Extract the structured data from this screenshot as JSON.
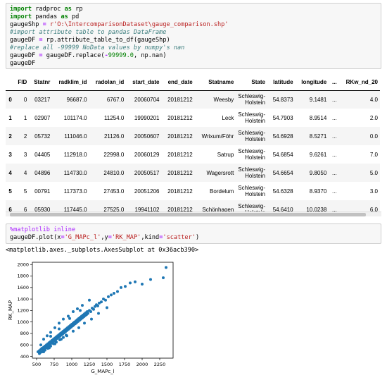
{
  "cell1": {
    "lines": [
      [
        {
          "t": "import",
          "c": "kw"
        },
        {
          "t": " radproc ",
          "c": "nm"
        },
        {
          "t": "as",
          "c": "kw"
        },
        {
          "t": " rp",
          "c": "nm"
        }
      ],
      [
        {
          "t": "import",
          "c": "kw"
        },
        {
          "t": " pandas ",
          "c": "nm"
        },
        {
          "t": "as",
          "c": "kw"
        },
        {
          "t": " pd",
          "c": "nm"
        }
      ],
      [
        {
          "t": "gaugeShp ",
          "c": "nm"
        },
        {
          "t": "=",
          "c": "op"
        },
        {
          "t": " ",
          "c": "nm"
        },
        {
          "t": "r'O:\\IntercomparisonDataset\\gauge_comparison.shp'",
          "c": "str"
        }
      ],
      [
        {
          "t": "#import attribute table to pandas DataFrame",
          "c": "cmt"
        }
      ],
      [
        {
          "t": "gaugeDF ",
          "c": "nm"
        },
        {
          "t": "=",
          "c": "op"
        },
        {
          "t": " rp.attribute_table_to_df(gaugeShp)",
          "c": "nm"
        }
      ],
      [
        {
          "t": "#replace all -99999 NoData values by numpy's nan",
          "c": "cmt"
        }
      ],
      [
        {
          "t": "gaugeDF ",
          "c": "nm"
        },
        {
          "t": "=",
          "c": "op"
        },
        {
          "t": " gaugeDF.replace(",
          "c": "nm"
        },
        {
          "t": "-",
          "c": "op"
        },
        {
          "t": "99999.0",
          "c": "num"
        },
        {
          "t": ", np.nan)",
          "c": "nm"
        }
      ],
      [
        {
          "t": "gaugeDF",
          "c": "nm"
        }
      ]
    ]
  },
  "table": {
    "columns": [
      "",
      "FID",
      "Statnr",
      "radklim_id",
      "radolan_id",
      "start_date",
      "end_date",
      "Statname",
      "State",
      "latitude",
      "longitude",
      "...",
      "RKw_nd_20"
    ],
    "rows": [
      {
        "index": "0",
        "cells": [
          "0",
          "03217",
          "96687.0",
          "6767.0",
          "20060704",
          "20181212",
          "Weesby",
          "Schleswig-Holstein",
          "54.8373",
          "9.1481",
          "...",
          "4.0"
        ]
      },
      {
        "index": "1",
        "cells": [
          "1",
          "02907",
          "101174.0",
          "11254.0",
          "19990201",
          "20181212",
          "Leck",
          "Schleswig-Holstein",
          "54.7903",
          "8.9514",
          "...",
          "2.0"
        ]
      },
      {
        "index": "2",
        "cells": [
          "2",
          "05732",
          "111046.0",
          "21126.0",
          "20050607",
          "20181212",
          "Wrixum/Föhr",
          "Schleswig-Holstein",
          "54.6928",
          "8.5271",
          "...",
          "0.0"
        ]
      },
      {
        "index": "3",
        "cells": [
          "3",
          "04405",
          "112918.0",
          "22998.0",
          "20060129",
          "20181212",
          "Satrup",
          "Schleswig-Holstein",
          "54.6854",
          "9.6261",
          "...",
          "7.0"
        ]
      },
      {
        "index": "4",
        "cells": [
          "4",
          "04896",
          "114730.0",
          "24810.0",
          "20050517",
          "20181212",
          "Wagersrott",
          "Schleswig-Holstein",
          "54.6654",
          "9.8050",
          "...",
          "5.0"
        ]
      },
      {
        "index": "5",
        "cells": [
          "5",
          "00791",
          "117373.0",
          "27453.0",
          "20051206",
          "20181212",
          "Bordelum",
          "Schleswig-Holstein",
          "54.6328",
          "8.9370",
          "...",
          "3.0"
        ]
      },
      {
        "index": "6",
        "cells": [
          "6",
          "05930",
          "117445.0",
          "27525.0",
          "19941102",
          "20181212",
          "Schönhagen",
          "Schleswig-Holstein",
          "54.6410",
          "10.0238",
          "...",
          "6.0"
        ]
      }
    ]
  },
  "cell2": {
    "lines": [
      [
        {
          "t": "%matplotlib inline",
          "c": "magic"
        }
      ],
      [
        {
          "t": "gaugeDF.plot(x",
          "c": "nm"
        },
        {
          "t": "=",
          "c": "op"
        },
        {
          "t": "'G_MAPc_l'",
          "c": "str"
        },
        {
          "t": ",y",
          "c": "nm"
        },
        {
          "t": "=",
          "c": "op"
        },
        {
          "t": "'RK_MAP'",
          "c": "str"
        },
        {
          "t": ",kind",
          "c": "nm"
        },
        {
          "t": "=",
          "c": "op"
        },
        {
          "t": "'scatter'",
          "c": "str"
        },
        {
          "t": ")",
          "c": "nm"
        }
      ]
    ]
  },
  "output": {
    "repr": "<matplotlib.axes._subplots.AxesSubplot at 0x36acb390>"
  },
  "chart_data": {
    "type": "scatter",
    "xlabel": "G_MAPc_l",
    "ylabel": "RK_MAP",
    "xlim": [
      440,
      2440
    ],
    "ylim": [
      370,
      2040
    ],
    "xticks": [
      500,
      750,
      1000,
      1250,
      1500,
      1750,
      2000,
      2250
    ],
    "yticks": [
      400,
      600,
      800,
      1000,
      1200,
      1400,
      1600,
      1800,
      2000
    ],
    "color": "#1f77b4",
    "points": [
      [
        520,
        480
      ],
      [
        540,
        500
      ],
      [
        555,
        470
      ],
      [
        560,
        520
      ],
      [
        575,
        540
      ],
      [
        590,
        510
      ],
      [
        600,
        560
      ],
      [
        610,
        530
      ],
      [
        620,
        580
      ],
      [
        630,
        550
      ],
      [
        640,
        600
      ],
      [
        650,
        570
      ],
      [
        660,
        620
      ],
      [
        670,
        590
      ],
      [
        680,
        640
      ],
      [
        690,
        610
      ],
      [
        700,
        660
      ],
      [
        710,
        630
      ],
      [
        720,
        680
      ],
      [
        730,
        650
      ],
      [
        740,
        700
      ],
      [
        750,
        670
      ],
      [
        760,
        720
      ],
      [
        770,
        690
      ],
      [
        780,
        740
      ],
      [
        790,
        710
      ],
      [
        800,
        760
      ],
      [
        810,
        730
      ],
      [
        820,
        780
      ],
      [
        830,
        750
      ],
      [
        840,
        800
      ],
      [
        850,
        770
      ],
      [
        860,
        820
      ],
      [
        870,
        790
      ],
      [
        880,
        840
      ],
      [
        890,
        810
      ],
      [
        900,
        860
      ],
      [
        910,
        830
      ],
      [
        920,
        880
      ],
      [
        930,
        850
      ],
      [
        940,
        900
      ],
      [
        950,
        870
      ],
      [
        960,
        920
      ],
      [
        970,
        890
      ],
      [
        980,
        940
      ],
      [
        990,
        910
      ],
      [
        1000,
        960
      ],
      [
        1010,
        930
      ],
      [
        1020,
        980
      ],
      [
        1030,
        950
      ],
      [
        1040,
        1000
      ],
      [
        1050,
        970
      ],
      [
        1060,
        1020
      ],
      [
        1070,
        990
      ],
      [
        1080,
        1040
      ],
      [
        1090,
        1010
      ],
      [
        1100,
        1060
      ],
      [
        1110,
        1030
      ],
      [
        1120,
        1080
      ],
      [
        1130,
        1050
      ],
      [
        1140,
        1100
      ],
      [
        1150,
        1070
      ],
      [
        1160,
        1120
      ],
      [
        1170,
        1090
      ],
      [
        1180,
        1140
      ],
      [
        1190,
        1110
      ],
      [
        1200,
        1160
      ],
      [
        1210,
        1130
      ],
      [
        1220,
        1180
      ],
      [
        1230,
        1150
      ],
      [
        1250,
        1200
      ],
      [
        1270,
        1180
      ],
      [
        1290,
        1240
      ],
      [
        1310,
        1220
      ],
      [
        1330,
        1270
      ],
      [
        1350,
        1300
      ],
      [
        1370,
        1280
      ],
      [
        1390,
        1330
      ],
      [
        1420,
        1350
      ],
      [
        1450,
        1400
      ],
      [
        1480,
        1380
      ],
      [
        1520,
        1440
      ],
      [
        1560,
        1470
      ],
      [
        1600,
        1500
      ],
      [
        1650,
        1530
      ],
      [
        1700,
        1600
      ],
      [
        1760,
        1620
      ],
      [
        1830,
        1680
      ],
      [
        1900,
        1700
      ],
      [
        2000,
        1660
      ],
      [
        2120,
        1740
      ],
      [
        2300,
        1770
      ],
      [
        2340,
        1950
      ],
      [
        600,
        700
      ],
      [
        650,
        760
      ],
      [
        700,
        820
      ],
      [
        760,
        900
      ],
      [
        820,
        980
      ],
      [
        880,
        1050
      ],
      [
        950,
        1100
      ],
      [
        1020,
        1180
      ],
      [
        1080,
        1230
      ],
      [
        1150,
        1290
      ],
      [
        1250,
        1380
      ],
      [
        600,
        480
      ],
      [
        680,
        550
      ],
      [
        760,
        620
      ],
      [
        850,
        700
      ],
      [
        930,
        760
      ],
      [
        1020,
        840
      ],
      [
        1100,
        900
      ],
      [
        1180,
        980
      ],
      [
        1280,
        1050
      ],
      [
        1380,
        1150
      ],
      [
        1500,
        1250
      ],
      [
        560,
        600
      ],
      [
        700,
        750
      ],
      [
        820,
        880
      ],
      [
        970,
        1060
      ],
      [
        1120,
        1200
      ],
      [
        540,
        450
      ],
      [
        580,
        480
      ],
      [
        620,
        510
      ],
      [
        660,
        540
      ],
      [
        700,
        580
      ],
      [
        740,
        620
      ],
      [
        780,
        650
      ],
      [
        830,
        690
      ],
      [
        880,
        730
      ],
      [
        920,
        770
      ]
    ]
  }
}
